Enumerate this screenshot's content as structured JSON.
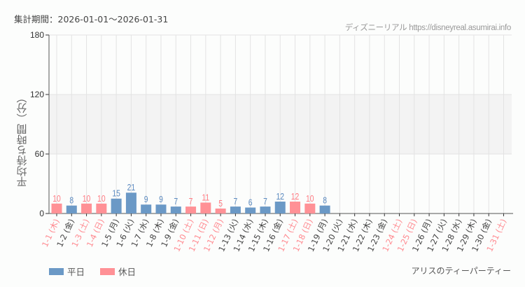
{
  "header": {
    "period_label": "集計期間：2026-01-01〜2026-01-31",
    "source": "ディズニーリアル https://disneyreal.asumirai.info"
  },
  "legend": {
    "weekday_label": "平日",
    "holiday_label": "休日",
    "weekday_color": "#6b99c6",
    "holiday_color": "#ff9196"
  },
  "attraction_name": "アリスのティーパーティー",
  "colors": {
    "weekday": "#6b99c6",
    "holiday": "#ff9196",
    "weekday_text": "#5b8ac0",
    "holiday_text": "#ff7a82",
    "label_weekday": "#444444",
    "label_holiday": "#ff8a90",
    "band": "#f3f3f3",
    "grid": "#e3e3e3",
    "axis": "#555555"
  },
  "chart_data": {
    "type": "bar",
    "title": "",
    "xlabel": "",
    "ylabel": "平均待ち時間（分）",
    "ylim": [
      0,
      180
    ],
    "yticks": [
      0,
      60,
      120,
      180
    ],
    "grid": true,
    "shaded_band": [
      60,
      120
    ],
    "legend_position": "bottom-left",
    "categories": [
      "1-1 (木)",
      "1-2 (金)",
      "1-3 (土)",
      "1-4 (日)",
      "1-5 (月)",
      "1-6 (火)",
      "1-7 (水)",
      "1-8 (木)",
      "1-9 (金)",
      "1-10 (土)",
      "1-11 (日)",
      "1-12 (月)",
      "1-13 (火)",
      "1-14 (水)",
      "1-15 (木)",
      "1-16 (金)",
      "1-17 (土)",
      "1-18 (日)",
      "1-19 (月)",
      "1-20 (火)",
      "1-21 (水)",
      "1-22 (木)",
      "1-23 (金)",
      "1-24 (土)",
      "1-25 (日)",
      "1-26 (月)",
      "1-27 (火)",
      "1-28 (水)",
      "1-29 (木)",
      "1-30 (金)",
      "1-31 (土)"
    ],
    "day_type": [
      "holiday",
      "weekday",
      "holiday",
      "holiday",
      "weekday",
      "weekday",
      "weekday",
      "weekday",
      "weekday",
      "holiday",
      "holiday",
      "holiday",
      "weekday",
      "weekday",
      "weekday",
      "weekday",
      "holiday",
      "holiday",
      "weekday",
      "weekday",
      "weekday",
      "weekday",
      "weekday",
      "holiday",
      "holiday",
      "weekday",
      "weekday",
      "weekday",
      "weekday",
      "weekday",
      "holiday"
    ],
    "values": [
      10,
      8,
      10,
      10,
      15,
      21,
      9,
      9,
      7,
      7,
      11,
      5,
      7,
      6,
      7,
      12,
      12,
      10,
      8,
      null,
      null,
      null,
      null,
      null,
      null,
      null,
      null,
      null,
      null,
      null,
      null
    ],
    "series": [
      {
        "name": "平日",
        "color": "#6b99c6"
      },
      {
        "name": "休日",
        "color": "#ff9196"
      }
    ]
  }
}
